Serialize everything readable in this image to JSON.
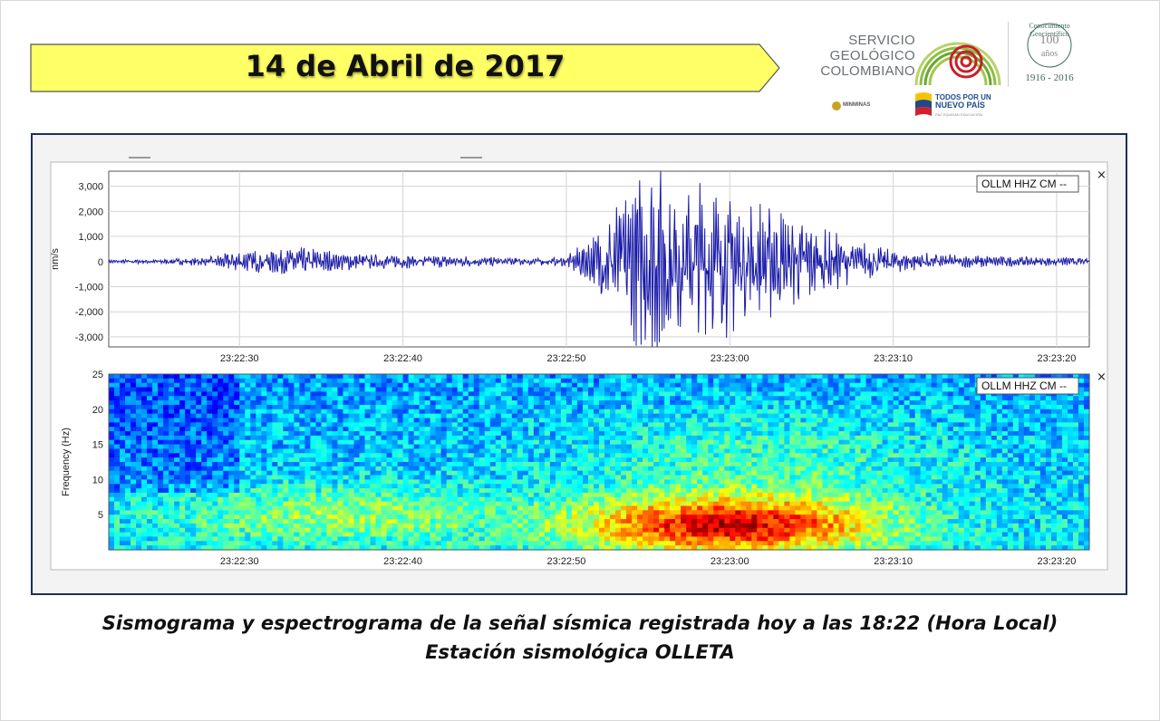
{
  "header": {
    "title": "14 de Abril de 2017"
  },
  "logos": {
    "sgc_lines": [
      "SERVICIO",
      "GEOLÓGICO",
      "COLOMBIANO"
    ],
    "century_arc": "Conocimiento Geocientífico",
    "century_number": "100",
    "century_word": "años",
    "century_range": "1916 - 2016",
    "minminas": "MINMINAS",
    "tpnp_line1": "TODOS POR UN",
    "tpnp_line2": "NUEVO PAÍS",
    "tpnp_sub": "PAZ EQUIDAD EDUCACIÓN",
    "colors": {
      "sgc_green": "#8cbf3f",
      "sgc_red": "#c8202b",
      "banner_yellow": "#ffff66"
    }
  },
  "caption": {
    "line1": "Sismograma y espectrograma de la señal sísmica registrada hoy a las 18:22 (Hora Local)",
    "line2": "Estación sismológica OLLETA"
  },
  "chart_data": [
    {
      "type": "line",
      "legend": "OLLM HHZ CM --",
      "ylabel": "nm/s",
      "yticks": [
        "3,000",
        "2,000",
        "1,000",
        "0",
        "-1,000",
        "-2,000",
        "-3,000"
      ],
      "ytick_values": [
        3000,
        2000,
        1000,
        0,
        -1000,
        -2000,
        -3000
      ],
      "ylim": [
        -3400,
        3600
      ],
      "xticks": [
        "23:22:30",
        "23:22:40",
        "23:22:50",
        "23:23:00",
        "23:23:10",
        "23:23:20"
      ],
      "xtick_seconds": [
        30,
        40,
        50,
        60,
        70,
        80
      ],
      "xlim_seconds": [
        22,
        82
      ],
      "envelope": {
        "t": [
          22,
          25,
          28,
          30,
          32,
          34,
          36,
          40,
          44,
          48,
          50,
          51.5,
          53,
          54.5,
          55.5,
          57,
          59,
          61,
          63,
          65,
          67,
          70,
          74,
          78,
          82
        ],
        "amp": [
          60,
          80,
          150,
          350,
          400,
          480,
          320,
          220,
          180,
          140,
          160,
          800,
          1900,
          2800,
          3400,
          2600,
          2500,
          2200,
          1700,
          1300,
          800,
          350,
          220,
          160,
          120
        ]
      },
      "color": "#1a1aa8",
      "grid": true
    },
    {
      "type": "heatmap",
      "legend": "OLLM HHZ CM --",
      "ylabel": "Frequency (Hz)",
      "yticks": [
        "25",
        "20",
        "15",
        "10",
        "5"
      ],
      "ytick_values": [
        25,
        20,
        15,
        10,
        5
      ],
      "ylim": [
        0,
        25
      ],
      "xticks": [
        "23:22:30",
        "23:22:40",
        "23:22:50",
        "23:23:00",
        "23:23:10",
        "23:23:20"
      ],
      "xtick_seconds": [
        30,
        40,
        50,
        60,
        70,
        80
      ],
      "xlim_seconds": [
        22,
        82
      ],
      "colormap": "jet",
      "energy_peak": {
        "time_start_s": 51,
        "time_end_s": 69,
        "freq_low_hz": 1,
        "freq_high_hz": 6
      }
    }
  ]
}
